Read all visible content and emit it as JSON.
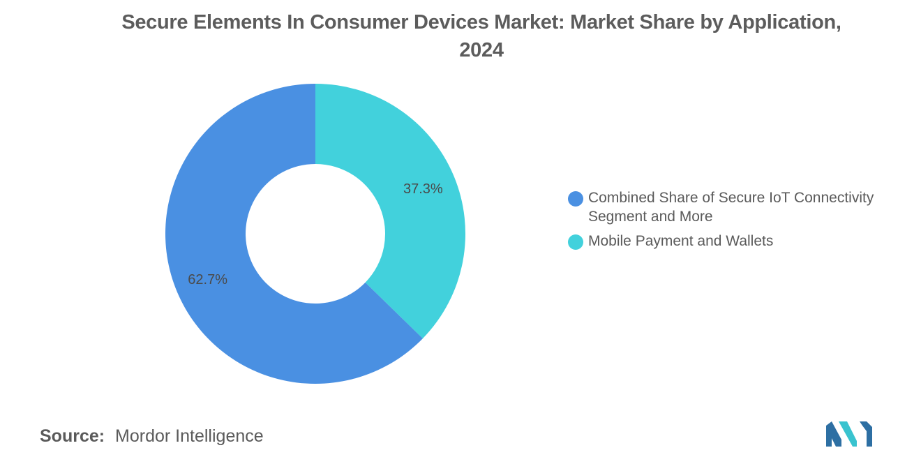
{
  "title": {
    "line1": "Secure Elements In Consumer Devices Market: Market Share by Application,",
    "line2": "2024"
  },
  "chart_data": {
    "type": "pie",
    "donut": true,
    "categories": [
      "Mobile Payment and Wallets",
      "Combined Share of Secure IoT Connectivity Segment and More"
    ],
    "values": [
      37.3,
      62.7
    ],
    "labels": [
      "37.3%",
      "62.7%"
    ],
    "colors": [
      "#42d1dc",
      "#4a90e2"
    ],
    "legend_position": "right"
  },
  "legend": {
    "items": [
      {
        "label": "Combined Share of Secure IoT Connectivity Segment and More",
        "color": "#4a90e2"
      },
      {
        "label": "Mobile Payment and Wallets",
        "color": "#42d1dc"
      }
    ]
  },
  "source": {
    "label": "Source:",
    "value": "Mordor Intelligence"
  },
  "logo": {
    "icon": "mordor-intelligence-logo-icon",
    "colors": [
      "#2d6fa3",
      "#39c3cf"
    ]
  }
}
